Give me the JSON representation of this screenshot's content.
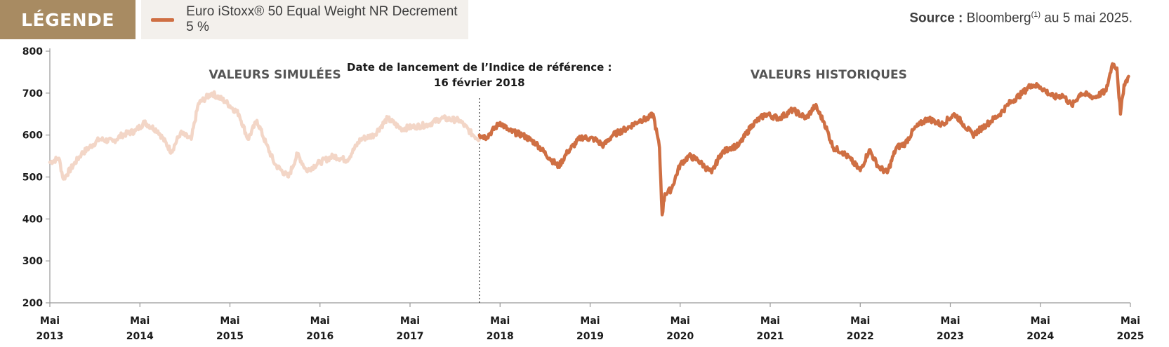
{
  "legend": {
    "tag": "LÉGENDE",
    "series_label": "Euro iStoxx® 50 Equal Weight NR Decrement 5 %"
  },
  "source": {
    "label": "Source :",
    "text": "Bloomberg",
    "sup": "(1)",
    "text_after": " au 5 mai 2025."
  },
  "colors": {
    "historic": "#cf6f43",
    "simulated": "#f3d6c7",
    "legend_tag_bg": "#a88b62",
    "legend_box_bg": "#f3f0ec"
  },
  "annotations": {
    "simulated": "VALEURS SIMULÉES",
    "historic": "VALEURS HISTORIQUES",
    "launch_line1": "Date de lancement de l’Indice de référence :",
    "launch_line2": "16 février 2018"
  },
  "chart_data": {
    "type": "line",
    "title": "",
    "xlabel": "",
    "ylabel": "",
    "ylim": [
      200,
      800
    ],
    "xlim": [
      2013.35,
      2025.35
    ],
    "y_ticks": [
      "200",
      "300",
      "400",
      "500",
      "600",
      "700",
      "800"
    ],
    "x_ticks": [
      {
        "month": "Mai",
        "year": "2013"
      },
      {
        "month": "Mai",
        "year": "2014"
      },
      {
        "month": "Mai",
        "year": "2015"
      },
      {
        "month": "Mai",
        "year": "2016"
      },
      {
        "month": "Mai",
        "year": "2017"
      },
      {
        "month": "Mai",
        "year": "2018"
      },
      {
        "month": "Mai",
        "year": "2019"
      },
      {
        "month": "Mai",
        "year": "2020"
      },
      {
        "month": "Mai",
        "year": "2021"
      },
      {
        "month": "Mai",
        "year": "2022"
      },
      {
        "month": "Mai",
        "year": "2023"
      },
      {
        "month": "Mai",
        "year": "2024"
      },
      {
        "month": "Mai",
        "year": "2025"
      }
    ],
    "launch_date": 2018.12,
    "grid": false,
    "legend_position": "top-left",
    "series": [
      {
        "name": "Euro iStoxx® 50 Equal Weight NR Decrement 5 %",
        "kind": "simulated",
        "x": [
          2013.35,
          2013.45,
          2013.5,
          2013.7,
          2013.9,
          2014.05,
          2014.15,
          2014.3,
          2014.4,
          2014.55,
          2014.7,
          2014.8,
          2014.92,
          2015.0,
          2015.15,
          2015.3,
          2015.45,
          2015.55,
          2015.65,
          2015.75,
          2015.85,
          2016.0,
          2016.1,
          2016.2,
          2016.35,
          2016.5,
          2016.65,
          2016.8,
          2016.95,
          2017.1,
          2017.25,
          2017.4,
          2017.55,
          2017.7,
          2017.9,
          2018.05,
          2018.12
        ],
        "y": [
          535,
          545,
          495,
          555,
          590,
          585,
          600,
          610,
          630,
          610,
          560,
          605,
          590,
          675,
          700,
          680,
          650,
          590,
          635,
          580,
          530,
          500,
          555,
          515,
          535,
          550,
          540,
          590,
          600,
          640,
          615,
          620,
          625,
          640,
          635,
          600,
          590
        ]
      },
      {
        "name": "Euro iStoxx® 50 Equal Weight NR Decrement 5 %",
        "kind": "historic",
        "x": [
          2018.12,
          2018.2,
          2018.35,
          2018.45,
          2018.6,
          2018.75,
          2018.9,
          2019.0,
          2019.1,
          2019.25,
          2019.4,
          2019.5,
          2019.6,
          2019.75,
          2019.9,
          2020.0,
          2020.05,
          2020.12,
          2020.15,
          2020.18,
          2020.25,
          2020.35,
          2020.45,
          2020.55,
          2020.62,
          2020.7,
          2020.8,
          2020.9,
          2021.0,
          2021.15,
          2021.3,
          2021.45,
          2021.6,
          2021.75,
          2021.85,
          2021.95,
          2022.05,
          2022.15,
          2022.25,
          2022.35,
          2022.45,
          2022.55,
          2022.65,
          2022.75,
          2022.85,
          2022.95,
          2023.1,
          2023.25,
          2023.4,
          2023.5,
          2023.6,
          2023.75,
          2023.9,
          2024.0,
          2024.15,
          2024.25,
          2024.35,
          2024.5,
          2024.6,
          2024.7,
          2024.8,
          2024.95,
          2025.08,
          2025.15,
          2025.2,
          2025.24,
          2025.28,
          2025.33
        ],
        "y": [
          600,
          595,
          630,
          610,
          600,
          580,
          545,
          525,
          560,
          595,
          590,
          575,
          600,
          615,
          635,
          640,
          650,
          570,
          410,
          460,
          470,
          530,
          550,
          540,
          525,
          510,
          555,
          570,
          575,
          625,
          650,
          640,
          660,
          640,
          670,
          630,
          570,
          560,
          540,
          515,
          565,
          525,
          510,
          570,
          580,
          615,
          640,
          625,
          650,
          625,
          600,
          625,
          650,
          675,
          700,
          720,
          715,
          690,
          695,
          670,
          700,
          690,
          705,
          770,
          760,
          650,
          720,
          740
        ]
      }
    ]
  }
}
